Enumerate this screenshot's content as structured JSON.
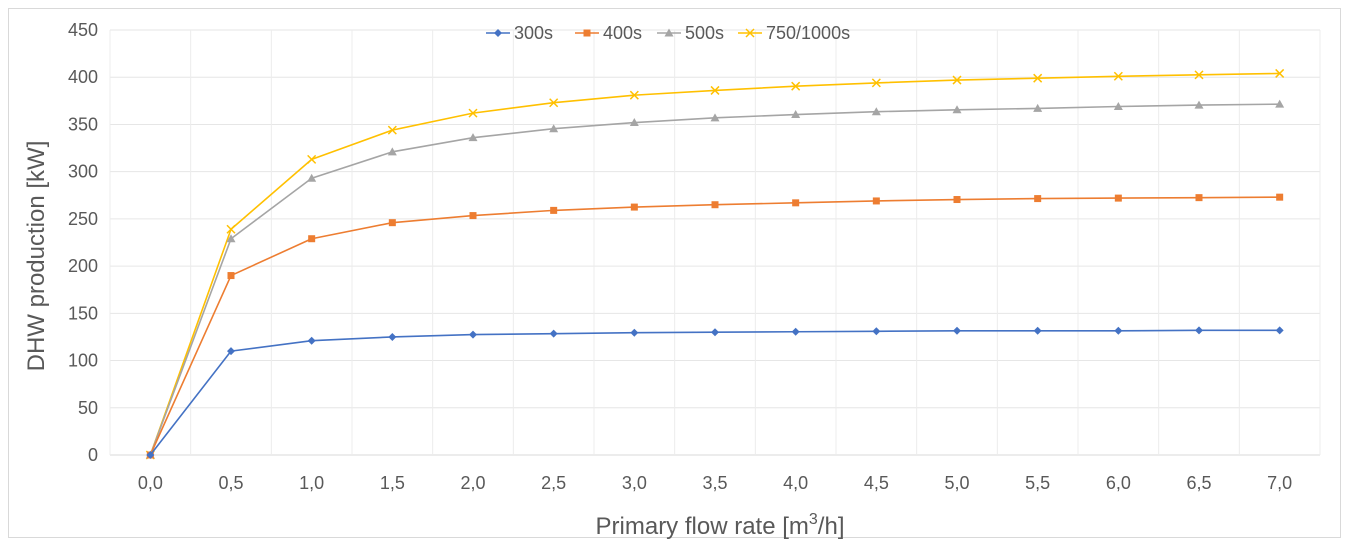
{
  "chart_data": {
    "type": "line",
    "title": "",
    "xlabel": "Primary flow rate [m3/h]",
    "xlabel_main": "Primary flow rate [m",
    "xlabel_sup": "3",
    "xlabel_tail": "/h]",
    "ylabel": "DHW production [kW]",
    "ylim": [
      0,
      450
    ],
    "yticks": [
      0,
      50,
      100,
      150,
      200,
      250,
      300,
      350,
      400,
      450
    ],
    "categories": [
      "0,0",
      "0,5",
      "1,0",
      "1,5",
      "2,0",
      "2,5",
      "3,0",
      "3,5",
      "4,0",
      "4,5",
      "5,0",
      "5,5",
      "6,0",
      "6,5",
      "7,0"
    ],
    "grid": true,
    "legend_position": "top",
    "series": [
      {
        "name": "300s",
        "color": "#4472C4",
        "marker": "diamond",
        "values": [
          0,
          110,
          121,
          125,
          127.5,
          128.5,
          129.5,
          130,
          130.5,
          131,
          131.5,
          131.5,
          131.5,
          132,
          132
        ]
      },
      {
        "name": "400s",
        "color": "#ED7D31",
        "marker": "square",
        "values": [
          0,
          190,
          229,
          246,
          253.5,
          259,
          262.5,
          265,
          267,
          269,
          270.5,
          271.5,
          272,
          272.5,
          273
        ]
      },
      {
        "name": "500s",
        "color": "#A5A5A5",
        "marker": "triangle",
        "values": [
          0,
          229,
          293,
          321,
          336,
          345.5,
          352,
          357,
          360.5,
          363.5,
          365.5,
          367,
          369,
          370.5,
          371.5
        ]
      },
      {
        "name": "750/1000s",
        "color": "#FFC000",
        "marker": "x",
        "values": [
          0,
          239,
          313,
          344,
          362,
          373,
          381,
          386,
          390.5,
          394,
          397,
          399,
          401,
          402.5,
          404
        ]
      }
    ]
  }
}
